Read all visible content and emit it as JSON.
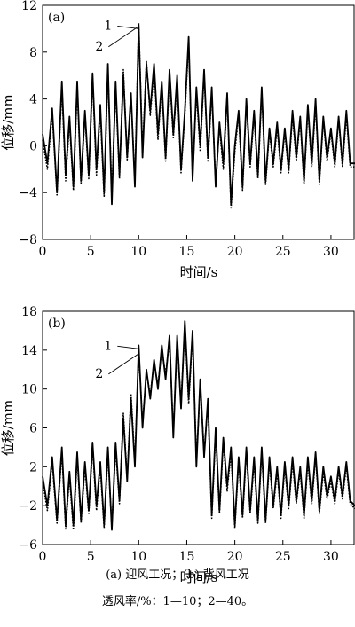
{
  "figure": {
    "caption_line1": "(a) 迎风工况；(b) 背风工况",
    "caption_line2": "透风率/%：1—10；2—40。"
  },
  "chart_data": [
    {
      "type": "line",
      "panel_label": "(a)",
      "xlabel": "时间/s",
      "ylabel": "位移/mm",
      "xlim": [
        0,
        32.5
      ],
      "ylim": [
        -8,
        12
      ],
      "x_ticks": [
        0,
        5,
        10,
        15,
        20,
        25,
        30
      ],
      "y_ticks": [
        -8,
        -4,
        0,
        4,
        8,
        12
      ],
      "grid": false,
      "legend": "inline numeric labels near x=10",
      "curve_labels": [
        {
          "text": "1",
          "series": 0,
          "at_x": 10.1
        },
        {
          "text": "2",
          "series": 1,
          "at_x": 10.0
        }
      ],
      "series": [
        {
          "style": "solid",
          "x": [
            0,
            0.5,
            1.0,
            1.5,
            2.0,
            2.4,
            2.8,
            3.2,
            3.6,
            4.0,
            4.4,
            4.8,
            5.2,
            5.6,
            6.0,
            6.4,
            6.8,
            7.2,
            7.6,
            8.0,
            8.4,
            8.8,
            9.2,
            9.6,
            10.0,
            10.4,
            10.8,
            11.2,
            11.6,
            12.0,
            12.4,
            12.8,
            13.2,
            13.6,
            14.0,
            14.4,
            14.8,
            15.2,
            15.6,
            16.0,
            16.4,
            16.8,
            17.2,
            17.6,
            18.0,
            18.4,
            18.8,
            19.2,
            19.6,
            20.0,
            20.4,
            20.8,
            21.2,
            21.6,
            22.0,
            22.4,
            22.8,
            23.2,
            23.6,
            24.0,
            24.4,
            24.8,
            25.2,
            25.6,
            26.0,
            26.4,
            26.8,
            27.2,
            27.6,
            28.0,
            28.4,
            28.8,
            29.2,
            29.6,
            30.0,
            30.4,
            30.8,
            31.2,
            31.6,
            32.0,
            32.5
          ],
          "y": [
            1,
            -1.5,
            3.2,
            -4,
            5.5,
            -2.5,
            2.5,
            -3.5,
            5.5,
            -3,
            3,
            -2.5,
            6.2,
            -2,
            3.5,
            -4,
            7,
            -5,
            5.5,
            -2.5,
            6,
            -1,
            4.5,
            -3.5,
            10.3,
            -1,
            7,
            3,
            7,
            1,
            5.5,
            -1,
            6.5,
            1,
            6,
            -2,
            3,
            9.3,
            -3,
            5,
            0,
            6.5,
            -1,
            5,
            -3.5,
            2,
            -1.5,
            4.5,
            -5,
            0,
            3,
            -3.5,
            4,
            -1.5,
            3,
            -2.5,
            5,
            -3,
            1.5,
            -1.5,
            2,
            -2,
            1.5,
            -2,
            3,
            -1,
            2.5,
            -3,
            3.5,
            -1.5,
            4,
            -3,
            2.5,
            -1,
            1.5,
            -1.5,
            2.5,
            -1.5,
            3,
            -1.5,
            -1.5
          ]
        },
        {
          "style": "dotted",
          "x": [
            0,
            0.5,
            1.0,
            1.5,
            2.0,
            2.4,
            2.8,
            3.2,
            3.6,
            4.0,
            4.4,
            4.8,
            5.2,
            5.6,
            6.0,
            6.4,
            6.8,
            7.2,
            7.6,
            8.0,
            8.4,
            8.8,
            9.2,
            9.6,
            10.0,
            10.4,
            10.8,
            11.2,
            11.6,
            12.0,
            12.4,
            12.8,
            13.2,
            13.6,
            14.0,
            14.4,
            14.8,
            15.2,
            15.6,
            16.0,
            16.4,
            16.8,
            17.2,
            17.6,
            18.0,
            18.4,
            18.8,
            19.2,
            19.6,
            20.0,
            20.4,
            20.8,
            21.2,
            21.6,
            22.0,
            22.4,
            22.8,
            23.2,
            23.6,
            24.0,
            24.4,
            24.8,
            25.2,
            25.6,
            26.0,
            26.4,
            26.8,
            27.2,
            27.6,
            28.0,
            28.4,
            28.8,
            29.2,
            29.6,
            30.0,
            30.4,
            30.8,
            31.2,
            31.6,
            32.0,
            32.5
          ],
          "y": [
            0.5,
            -2,
            2.8,
            -4.2,
            5,
            -3,
            2,
            -3.8,
            5,
            -3.2,
            2.6,
            -2.8,
            5.8,
            -2.5,
            3,
            -4.3,
            6.5,
            -4.2,
            5,
            -2.8,
            6.5,
            -1.2,
            4.2,
            -3,
            10.5,
            -0.5,
            7.2,
            2.6,
            6.5,
            0.5,
            5.2,
            -1.3,
            6,
            0.7,
            5.6,
            -2.3,
            2.7,
            8.8,
            -2.7,
            4.6,
            -0.5,
            6.2,
            -1.4,
            4.6,
            -3.2,
            1.6,
            -2,
            4.2,
            -5.3,
            -0.5,
            2.6,
            -3.8,
            3.6,
            -1.8,
            2.6,
            -2.8,
            4.6,
            -3.3,
            1.2,
            -1.8,
            1.6,
            -2.3,
            1.2,
            -2.3,
            2.6,
            -1.3,
            2.2,
            -3.3,
            3.2,
            -1.8,
            3.6,
            -3.3,
            2.2,
            -1.3,
            1.2,
            -1.8,
            2.2,
            -1.8,
            2.6,
            -1.8,
            -1.8
          ]
        }
      ]
    },
    {
      "type": "line",
      "panel_label": "(b)",
      "xlabel": "时间/s",
      "ylabel": "位移/mm",
      "xlim": [
        0,
        32.5
      ],
      "ylim": [
        -6,
        18
      ],
      "x_ticks": [
        0,
        5,
        10,
        15,
        20,
        25,
        30
      ],
      "y_ticks": [
        -6,
        -2,
        2,
        6,
        10,
        14,
        18
      ],
      "grid": false,
      "legend": "inline numeric labels near x=10",
      "curve_labels": [
        {
          "text": "1",
          "series": 0,
          "at_x": 10.1
        },
        {
          "text": "2",
          "series": 1,
          "at_x": 10.0
        }
      ],
      "series": [
        {
          "style": "solid",
          "x": [
            0,
            0.5,
            1.0,
            1.5,
            2.0,
            2.4,
            2.8,
            3.2,
            3.6,
            4.0,
            4.4,
            4.8,
            5.2,
            5.6,
            6.0,
            6.4,
            6.8,
            7.2,
            7.6,
            8.0,
            8.4,
            8.8,
            9.2,
            9.6,
            10.0,
            10.4,
            10.8,
            11.2,
            11.6,
            12.0,
            12.4,
            12.8,
            13.2,
            13.6,
            14.0,
            14.4,
            14.8,
            15.2,
            15.6,
            16.0,
            16.4,
            16.8,
            17.2,
            17.6,
            18.0,
            18.4,
            18.8,
            19.2,
            19.6,
            20.0,
            20.4,
            20.8,
            21.2,
            21.6,
            22.0,
            22.4,
            22.8,
            23.2,
            23.6,
            24.0,
            24.4,
            24.8,
            25.2,
            25.6,
            26.0,
            26.4,
            26.8,
            27.2,
            27.6,
            28.0,
            28.4,
            28.8,
            29.2,
            29.6,
            30.0,
            30.4,
            30.8,
            31.2,
            31.6,
            32.0,
            32.5
          ],
          "y": [
            1,
            -2,
            3,
            -3.5,
            4,
            -4,
            1.5,
            -4,
            3.5,
            -3.5,
            2.5,
            -2.5,
            4.5,
            -2,
            2.5,
            -4,
            4,
            -4.5,
            4.5,
            -1.5,
            7,
            0.5,
            9,
            2,
            14.5,
            6,
            12,
            9,
            13,
            10,
            14.5,
            11,
            15.5,
            5,
            15.5,
            8,
            17,
            9,
            16,
            2,
            11,
            3,
            9,
            -3,
            6,
            -2.5,
            5,
            0,
            4,
            -4,
            3,
            -3,
            4,
            -2.5,
            3,
            -3.5,
            4,
            -3.5,
            3,
            -2,
            2,
            -3,
            2.5,
            -2,
            3,
            -1.5,
            2,
            -3,
            3,
            -1.5,
            3.5,
            -2.5,
            2,
            -1,
            1,
            -1.5,
            2,
            -1,
            2.5,
            -1.5,
            -2
          ]
        },
        {
          "style": "dotted",
          "x": [
            0,
            0.5,
            1.0,
            1.5,
            2.0,
            2.4,
            2.8,
            3.2,
            3.6,
            4.0,
            4.4,
            4.8,
            5.2,
            5.6,
            6.0,
            6.4,
            6.8,
            7.2,
            7.6,
            8.0,
            8.4,
            8.8,
            9.2,
            9.6,
            10.0,
            10.4,
            10.8,
            11.2,
            11.6,
            12.0,
            12.4,
            12.8,
            13.2,
            13.6,
            14.0,
            14.4,
            14.8,
            15.2,
            15.6,
            16.0,
            16.4,
            16.8,
            17.2,
            17.6,
            18.0,
            18.4,
            18.8,
            19.2,
            19.6,
            20.0,
            20.4,
            20.8,
            21.2,
            21.6,
            22.0,
            22.4,
            22.8,
            23.2,
            23.6,
            24.0,
            24.4,
            24.8,
            25.2,
            25.6,
            26.0,
            26.4,
            26.8,
            27.2,
            27.6,
            28.0,
            28.4,
            28.8,
            29.2,
            29.6,
            30.0,
            30.4,
            30.8,
            31.2,
            31.6,
            32.0,
            32.5
          ],
          "y": [
            0.5,
            -2.5,
            2.5,
            -3.8,
            3.5,
            -4.4,
            1,
            -4.5,
            3,
            -3.8,
            2,
            -2.8,
            4,
            -2.5,
            2,
            -4.3,
            3.5,
            -4.2,
            4,
            -1.8,
            7.5,
            0.8,
            9.5,
            2.5,
            14,
            6.5,
            11.5,
            9.5,
            12.5,
            10.5,
            14,
            11.5,
            15,
            5.5,
            15,
            8.5,
            16.5,
            8.5,
            15.5,
            2.5,
            10.5,
            3.5,
            8.5,
            -3.3,
            5.5,
            -2.8,
            4.5,
            -0.5,
            3.5,
            -4.3,
            2.5,
            -3.3,
            3.5,
            -2.8,
            2.5,
            -3.8,
            3.5,
            -3.8,
            2.5,
            -2.3,
            1.5,
            -3.3,
            2,
            -2.3,
            2.5,
            -1.8,
            1.5,
            -3.3,
            2.5,
            -1.8,
            3,
            -2.8,
            1.5,
            -1.3,
            0.5,
            -1.8,
            1.5,
            -1.3,
            2,
            -1.8,
            -2.3
          ]
        }
      ]
    }
  ]
}
